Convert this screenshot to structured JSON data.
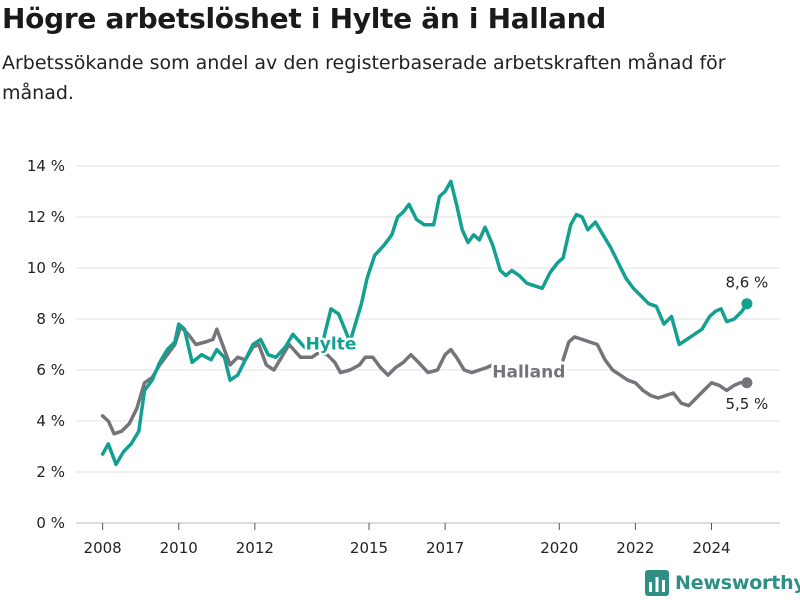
{
  "header": {
    "title": "Högre arbetslöshet i Hylte än i Halland",
    "subtitle": "Arbetssökande som andel av den registerbaserade arbetskraften månad för månad."
  },
  "brand": {
    "name": "Newsworthy",
    "icon": "bar-chart-logo-icon"
  },
  "colors": {
    "hylte": "#14a091",
    "halland": "#75747a",
    "grid": "#e2e2e2",
    "text": "#222222"
  },
  "chart_data": {
    "type": "line",
    "title": "",
    "xlabel": "",
    "ylabel": "",
    "ylim": [
      0,
      14
    ],
    "xlim": [
      2007.3,
      2025.8
    ],
    "grid": true,
    "y_ticks": [
      "0 %",
      "2 %",
      "4 %",
      "6 %",
      "8 %",
      "10 %",
      "12 %",
      "14 %"
    ],
    "x_ticks": [
      "2008",
      "2010",
      "2012",
      "2015",
      "2017",
      "2020",
      "2022",
      "2024"
    ],
    "series": [
      {
        "name": "Hylte",
        "color": "#14a091",
        "end_label": "8,6 %",
        "points": [
          [
            2008.0,
            2.7
          ],
          [
            2008.15,
            3.1
          ],
          [
            2008.35,
            2.3
          ],
          [
            2008.55,
            2.8
          ],
          [
            2008.75,
            3.1
          ],
          [
            2008.95,
            3.6
          ],
          [
            2009.1,
            5.2
          ],
          [
            2009.3,
            5.6
          ],
          [
            2009.5,
            6.3
          ],
          [
            2009.7,
            6.8
          ],
          [
            2009.9,
            7.1
          ],
          [
            2010.0,
            7.8
          ],
          [
            2010.15,
            7.6
          ],
          [
            2010.35,
            6.3
          ],
          [
            2010.6,
            6.6
          ],
          [
            2010.85,
            6.4
          ],
          [
            2011.0,
            6.8
          ],
          [
            2011.2,
            6.5
          ],
          [
            2011.35,
            5.6
          ],
          [
            2011.55,
            5.8
          ],
          [
            2011.75,
            6.4
          ],
          [
            2011.95,
            7.0
          ],
          [
            2012.15,
            7.2
          ],
          [
            2012.35,
            6.6
          ],
          [
            2012.55,
            6.5
          ],
          [
            2012.8,
            6.9
          ],
          [
            2013.0,
            7.4
          ],
          [
            2013.3,
            6.9
          ],
          [
            2013.55,
            6.8
          ],
          [
            2013.8,
            7.2
          ],
          [
            2014.0,
            8.4
          ],
          [
            2014.2,
            8.2
          ],
          [
            2014.5,
            7.1
          ],
          [
            2014.8,
            8.6
          ],
          [
            2014.95,
            9.6
          ],
          [
            2015.15,
            10.5
          ],
          [
            2015.4,
            10.9
          ],
          [
            2015.6,
            11.3
          ],
          [
            2015.75,
            12.0
          ],
          [
            2015.9,
            12.2
          ],
          [
            2016.05,
            12.5
          ],
          [
            2016.25,
            11.9
          ],
          [
            2016.45,
            11.7
          ],
          [
            2016.7,
            11.7
          ],
          [
            2016.85,
            12.8
          ],
          [
            2017.0,
            13.0
          ],
          [
            2017.15,
            13.4
          ],
          [
            2017.3,
            12.5
          ],
          [
            2017.45,
            11.5
          ],
          [
            2017.6,
            11.0
          ],
          [
            2017.75,
            11.3
          ],
          [
            2017.9,
            11.1
          ],
          [
            2018.05,
            11.6
          ],
          [
            2018.25,
            10.9
          ],
          [
            2018.45,
            9.9
          ],
          [
            2018.6,
            9.7
          ],
          [
            2018.75,
            9.9
          ],
          [
            2018.95,
            9.7
          ],
          [
            2019.15,
            9.4
          ],
          [
            2019.35,
            9.3
          ],
          [
            2019.55,
            9.2
          ],
          [
            2019.75,
            9.8
          ],
          [
            2019.95,
            10.2
          ],
          [
            2020.1,
            10.4
          ],
          [
            2020.3,
            11.7
          ],
          [
            2020.45,
            12.1
          ],
          [
            2020.6,
            12.0
          ],
          [
            2020.75,
            11.5
          ],
          [
            2020.95,
            11.8
          ],
          [
            2021.15,
            11.3
          ],
          [
            2021.35,
            10.8
          ],
          [
            2021.55,
            10.2
          ],
          [
            2021.75,
            9.6
          ],
          [
            2021.95,
            9.2
          ],
          [
            2022.15,
            8.9
          ],
          [
            2022.35,
            8.6
          ],
          [
            2022.55,
            8.5
          ],
          [
            2022.75,
            7.8
          ],
          [
            2022.95,
            8.1
          ],
          [
            2023.15,
            7.0
          ],
          [
            2023.35,
            7.2
          ],
          [
            2023.55,
            7.4
          ],
          [
            2023.75,
            7.6
          ],
          [
            2023.95,
            8.1
          ],
          [
            2024.1,
            8.3
          ],
          [
            2024.25,
            8.4
          ],
          [
            2024.4,
            7.9
          ],
          [
            2024.6,
            8.0
          ],
          [
            2024.8,
            8.3
          ],
          [
            2024.93,
            8.6
          ]
        ]
      },
      {
        "name": "Halland",
        "color": "#75747a",
        "end_label": "5,5 %",
        "points": [
          [
            2008.0,
            4.2
          ],
          [
            2008.15,
            4.0
          ],
          [
            2008.3,
            3.5
          ],
          [
            2008.5,
            3.6
          ],
          [
            2008.7,
            3.9
          ],
          [
            2008.9,
            4.5
          ],
          [
            2009.1,
            5.5
          ],
          [
            2009.3,
            5.7
          ],
          [
            2009.5,
            6.2
          ],
          [
            2009.7,
            6.6
          ],
          [
            2009.9,
            7.0
          ],
          [
            2010.05,
            7.7
          ],
          [
            2010.25,
            7.4
          ],
          [
            2010.45,
            7.0
          ],
          [
            2010.7,
            7.1
          ],
          [
            2010.9,
            7.2
          ],
          [
            2011.0,
            7.6
          ],
          [
            2011.15,
            7.0
          ],
          [
            2011.35,
            6.2
          ],
          [
            2011.55,
            6.5
          ],
          [
            2011.75,
            6.4
          ],
          [
            2011.95,
            6.9
          ],
          [
            2012.1,
            7.0
          ],
          [
            2012.3,
            6.2
          ],
          [
            2012.5,
            6.0
          ],
          [
            2012.7,
            6.5
          ],
          [
            2012.9,
            7.0
          ],
          [
            2013.2,
            6.5
          ],
          [
            2013.5,
            6.5
          ],
          [
            2013.7,
            6.7
          ],
          [
            2013.9,
            6.6
          ],
          [
            2014.1,
            6.3
          ],
          [
            2014.25,
            5.9
          ],
          [
            2014.5,
            6.0
          ],
          [
            2014.75,
            6.2
          ],
          [
            2014.9,
            6.5
          ],
          [
            2015.1,
            6.5
          ],
          [
            2015.3,
            6.1
          ],
          [
            2015.5,
            5.8
          ],
          [
            2015.7,
            6.1
          ],
          [
            2015.9,
            6.3
          ],
          [
            2016.1,
            6.6
          ],
          [
            2016.3,
            6.3
          ],
          [
            2016.55,
            5.9
          ],
          [
            2016.8,
            6.0
          ],
          [
            2017.0,
            6.6
          ],
          [
            2017.15,
            6.8
          ],
          [
            2017.3,
            6.5
          ],
          [
            2017.5,
            6.0
          ],
          [
            2017.7,
            5.9
          ],
          [
            2017.9,
            6.0
          ],
          [
            2018.1,
            6.1
          ],
          [
            2018.25,
            6.2
          ],
          null,
          [
            2020.1,
            6.4
          ],
          [
            2020.25,
            7.1
          ],
          [
            2020.4,
            7.3
          ],
          [
            2020.6,
            7.2
          ],
          [
            2020.8,
            7.1
          ],
          [
            2021.0,
            7.0
          ],
          [
            2021.2,
            6.4
          ],
          [
            2021.4,
            6.0
          ],
          [
            2021.6,
            5.8
          ],
          [
            2021.8,
            5.6
          ],
          [
            2022.0,
            5.5
          ],
          [
            2022.2,
            5.2
          ],
          [
            2022.4,
            5.0
          ],
          [
            2022.6,
            4.9
          ],
          [
            2022.8,
            5.0
          ],
          [
            2023.0,
            5.1
          ],
          [
            2023.2,
            4.7
          ],
          [
            2023.4,
            4.6
          ],
          [
            2023.6,
            4.9
          ],
          [
            2023.8,
            5.2
          ],
          [
            2024.0,
            5.5
          ],
          [
            2024.2,
            5.4
          ],
          [
            2024.4,
            5.2
          ],
          [
            2024.6,
            5.4
          ],
          [
            2024.75,
            5.5
          ],
          [
            2024.93,
            5.5
          ]
        ]
      }
    ]
  }
}
